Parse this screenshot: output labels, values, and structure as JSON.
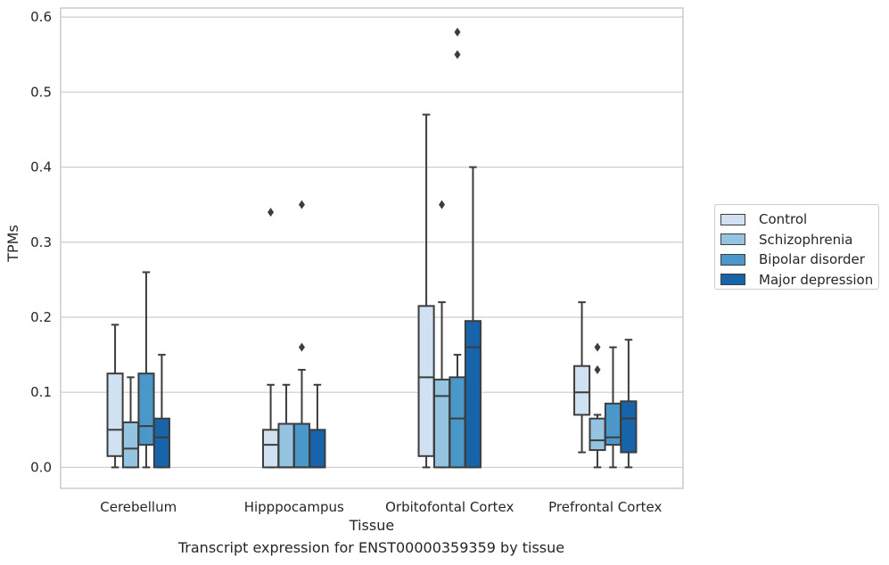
{
  "caption": "Transcript expression for ENST00000359359 by tissue",
  "chart_data": {
    "type": "box",
    "title": "",
    "xlabel": "Tissue",
    "ylabel": "TPMs",
    "ylim": [
      -0.028,
      0.612
    ],
    "yticks": [
      "0.0",
      "0.1",
      "0.2",
      "0.3",
      "0.4",
      "0.5",
      "0.6"
    ],
    "grid": "horizontal",
    "legend_position": "right",
    "categories": [
      "Cerebellum",
      "Hipppocampus",
      "Orbitofontal Cortex",
      "Prefrontal Cortex"
    ],
    "series": [
      {
        "name": "Control",
        "color": "#d0e1f2",
        "boxes": [
          {
            "min": 0.0,
            "q1": 0.015,
            "median": 0.05,
            "q3": 0.125,
            "max": 0.19,
            "outliers": []
          },
          {
            "min": 0.0,
            "q1": 0.0,
            "median": 0.03,
            "q3": 0.05,
            "max": 0.11,
            "outliers": [
              0.34
            ]
          },
          {
            "min": 0.0,
            "q1": 0.015,
            "median": 0.12,
            "q3": 0.215,
            "max": 0.47,
            "outliers": []
          },
          {
            "min": 0.02,
            "q1": 0.07,
            "median": 0.1,
            "q3": 0.135,
            "max": 0.22,
            "outliers": []
          }
        ]
      },
      {
        "name": "Schizophrenia",
        "color": "#94c4df",
        "boxes": [
          {
            "min": 0.0,
            "q1": 0.0,
            "median": 0.025,
            "q3": 0.06,
            "max": 0.12,
            "outliers": []
          },
          {
            "min": 0.0,
            "q1": 0.0,
            "median": 0.0,
            "q3": 0.058,
            "max": 0.11,
            "outliers": []
          },
          {
            "min": 0.0,
            "q1": 0.0,
            "median": 0.095,
            "q3": 0.117,
            "max": 0.22,
            "outliers": [
              0.35
            ]
          },
          {
            "min": 0.0,
            "q1": 0.023,
            "median": 0.036,
            "q3": 0.065,
            "max": 0.07,
            "outliers": [
              0.13,
              0.16
            ]
          }
        ]
      },
      {
        "name": "Bipolar disorder",
        "color": "#4a98c9",
        "boxes": [
          {
            "min": 0.0,
            "q1": 0.03,
            "median": 0.055,
            "q3": 0.125,
            "max": 0.26,
            "outliers": []
          },
          {
            "min": 0.0,
            "q1": 0.0,
            "median": 0.0,
            "q3": 0.058,
            "max": 0.13,
            "outliers": [
              0.16,
              0.35
            ]
          },
          {
            "min": 0.0,
            "q1": 0.0,
            "median": 0.065,
            "q3": 0.12,
            "max": 0.15,
            "outliers": [
              0.55,
              0.58
            ]
          },
          {
            "min": 0.0,
            "q1": 0.03,
            "median": 0.04,
            "q3": 0.085,
            "max": 0.16,
            "outliers": []
          }
        ]
      },
      {
        "name": "Major depression",
        "color": "#1764ab",
        "boxes": [
          {
            "min": 0.0,
            "q1": 0.0,
            "median": 0.04,
            "q3": 0.065,
            "max": 0.15,
            "outliers": []
          },
          {
            "min": 0.0,
            "q1": 0.0,
            "median": 0.0,
            "q3": 0.05,
            "max": 0.11,
            "outliers": []
          },
          {
            "min": 0.0,
            "q1": 0.0,
            "median": 0.16,
            "q3": 0.195,
            "max": 0.4,
            "outliers": []
          },
          {
            "min": 0.0,
            "q1": 0.02,
            "median": 0.065,
            "q3": 0.088,
            "max": 0.17,
            "outliers": []
          }
        ]
      }
    ]
  }
}
